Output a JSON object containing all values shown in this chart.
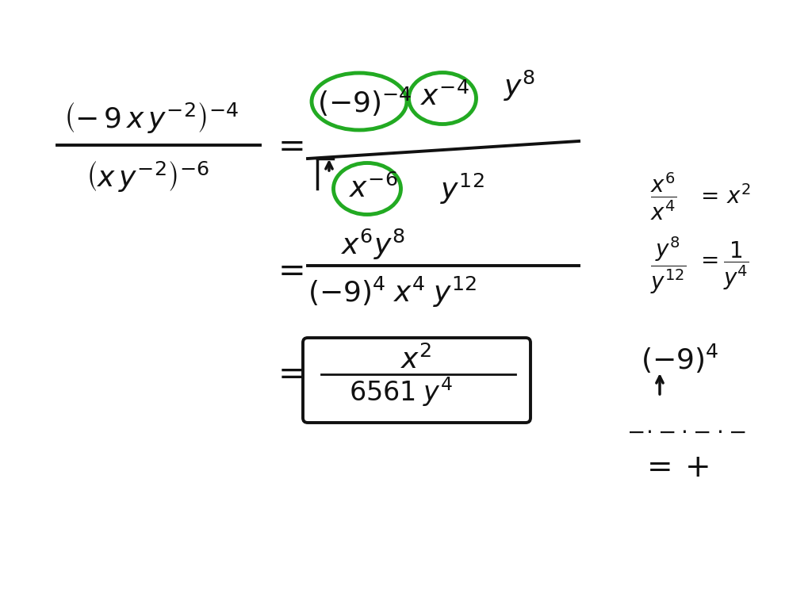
{
  "bg_color": "#ffffff",
  "ink_color": "#111111",
  "green_color": "#22aa22",
  "figsize": [
    10.24,
    7.68
  ],
  "dpi": 100
}
